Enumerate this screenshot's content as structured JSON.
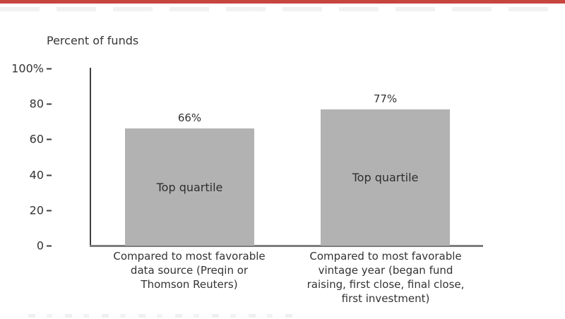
{
  "header": {
    "percent_label": "Percent of funds"
  },
  "colors": {
    "top_rule_red": "#c7453e",
    "bar_fill": "#b2b2b2",
    "axis_dark": "#3f3f3f",
    "axis_light": "#7d7d7d",
    "text": "#333333"
  },
  "chart_data": {
    "type": "bar",
    "title": "",
    "ylabel": "Percent of funds",
    "categories": [
      "Compared to most favorable\ndata source (Preqin or\nThomson Reuters)",
      "Compared to most favorable\nvintage year (began fund\nraising, first close, final close,\nfirst investment)"
    ],
    "values": [
      66,
      77
    ],
    "value_labels": [
      "66%",
      "77%"
    ],
    "bar_annotations": [
      "Top quartile",
      "Top quartile"
    ],
    "ylim": [
      0,
      100
    ],
    "yticks_top_to_bottom": [
      "100%",
      "80",
      "60",
      "40",
      "20",
      "0"
    ],
    "grid": false,
    "legend": null
  }
}
